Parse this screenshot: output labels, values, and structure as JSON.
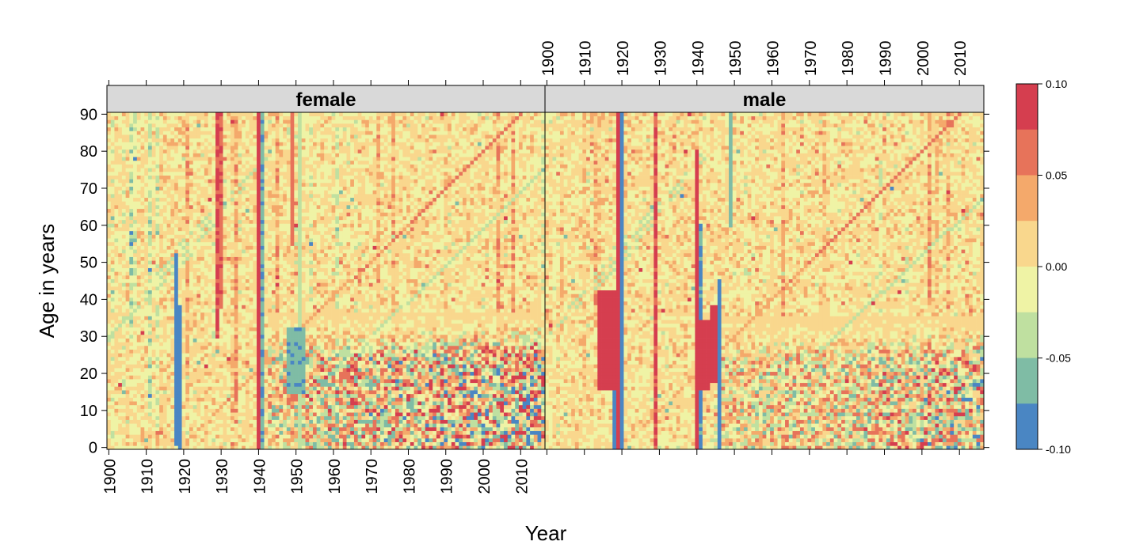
{
  "chart_data": {
    "type": "heatmap",
    "xlabel": "Year",
    "ylabel": "Age in years",
    "xlim": [
      1900,
      2016
    ],
    "ylim": [
      0,
      90
    ],
    "x_ticks": [
      1900,
      1910,
      1920,
      1930,
      1940,
      1950,
      1960,
      1970,
      1980,
      1990,
      2000,
      2010
    ],
    "y_ticks": [
      0,
      10,
      20,
      30,
      40,
      50,
      60,
      70,
      80,
      90
    ],
    "panels": [
      {
        "name": "female"
      },
      {
        "name": "male"
      }
    ],
    "colorbar": {
      "range": [
        -0.1,
        0.1
      ],
      "tick_labels": [
        "0.10",
        "0.05",
        "0.00",
        "-0.05",
        "-0.10"
      ],
      "colors": [
        "#d53e4f",
        "#e7735a",
        "#f4a96b",
        "#f9d78d",
        "#eff3a5",
        "#bfe0a0",
        "#7fbca5",
        "#4a86c3"
      ]
    },
    "features": {
      "female": {
        "background": 0.005,
        "columns": [
          {
            "year": 1918,
            "age_from": 1,
            "age_to": 52,
            "value": -0.1
          },
          {
            "year": 1919,
            "age_from": 0,
            "age_to": 38,
            "value": -0.1
          },
          {
            "year": 1929,
            "age_from": 30,
            "age_to": 90,
            "value": 0.08
          },
          {
            "year": 1930,
            "age_from": 38,
            "age_to": 90,
            "value": 0.07
          },
          {
            "year": 1940,
            "age_from": 0,
            "age_to": 90,
            "value": 0.1
          },
          {
            "year": 1941,
            "age_from": 0,
            "age_to": 90,
            "value": -0.07
          },
          {
            "year": 1949,
            "age_from": 55,
            "age_to": 90,
            "value": 0.06
          },
          {
            "year": 1951,
            "age_from": 0,
            "age_to": 90,
            "value": -0.04
          }
        ],
        "blocks": [
          {
            "year_from": 1948,
            "year_to": 1952,
            "age_from": 15,
            "age_to": 32,
            "value": -0.07
          }
        ],
        "diagonals": [
          {
            "year_start": 1919,
            "age_start": 0,
            "year_end": 2010,
            "age_end": 90,
            "value": 0.07
          },
          {
            "year_start": 1940,
            "age_start": 0,
            "year_end": 2016,
            "age_end": 75,
            "value": -0.05
          }
        ],
        "noise_zone": {
          "year_from": 1943,
          "year_to": 2016,
          "age_from": 0,
          "age_to": 36,
          "amplitude": 0.11
        }
      },
      "male": {
        "background": 0.005,
        "columns": [
          {
            "year": 1918,
            "age_from": 0,
            "age_to": 40,
            "value": -0.1
          },
          {
            "year": 1919,
            "age_from": 0,
            "age_to": 90,
            "value": 0.1
          },
          {
            "year": 1920,
            "age_from": 0,
            "age_to": 90,
            "value": -0.09
          },
          {
            "year": 1929,
            "age_from": 0,
            "age_to": 90,
            "value": 0.08
          },
          {
            "year": 1940,
            "age_from": 0,
            "age_to": 80,
            "value": 0.1
          },
          {
            "year": 1941,
            "age_from": 0,
            "age_to": 60,
            "value": -0.08
          },
          {
            "year": 1946,
            "age_from": 0,
            "age_to": 45,
            "value": -0.09
          },
          {
            "year": 1949,
            "age_from": 60,
            "age_to": 90,
            "value": -0.06
          }
        ],
        "blocks": [
          {
            "year_from": 1914,
            "year_to": 1918,
            "age_from": 16,
            "age_to": 42,
            "value": 0.1
          },
          {
            "year_from": 1941,
            "year_to": 1943,
            "age_from": 16,
            "age_to": 34,
            "value": 0.1
          },
          {
            "year_from": 1944,
            "year_to": 1945,
            "age_from": 18,
            "age_to": 38,
            "value": 0.1
          }
        ],
        "diagonals": [
          {
            "year_start": 1920,
            "age_start": 0,
            "year_end": 2010,
            "age_end": 90,
            "value": 0.07
          },
          {
            "year_start": 1945,
            "age_start": 0,
            "year_end": 2016,
            "age_end": 67,
            "value": -0.05
          }
        ],
        "noise_zone": {
          "year_from": 1945,
          "year_to": 2016,
          "age_from": 0,
          "age_to": 35,
          "amplitude": 0.09
        }
      }
    }
  }
}
